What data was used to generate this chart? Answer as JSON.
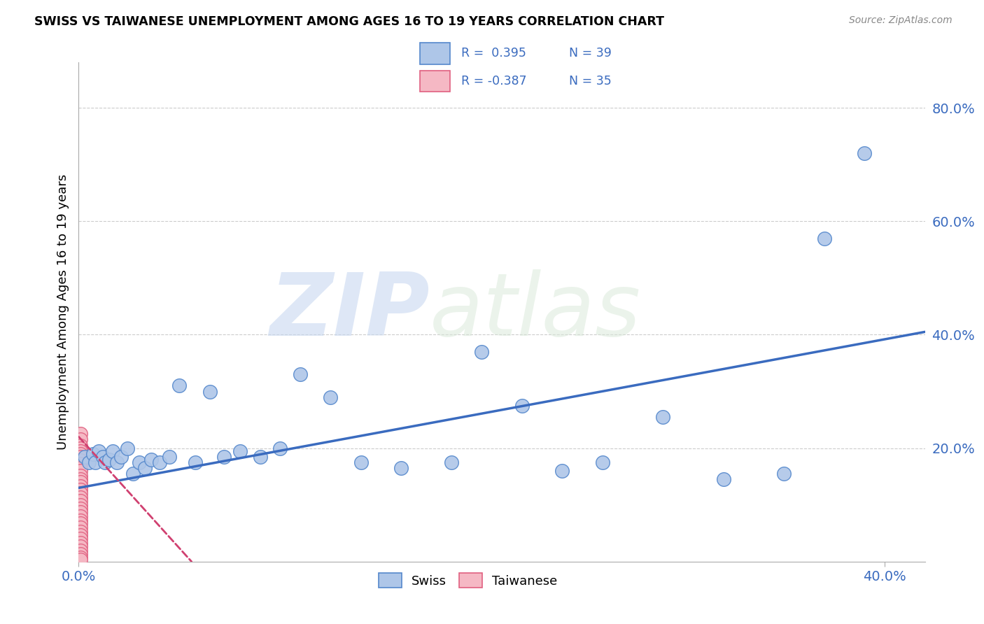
{
  "title": "SWISS VS TAIWANESE UNEMPLOYMENT AMONG AGES 16 TO 19 YEARS CORRELATION CHART",
  "source": "Source: ZipAtlas.com",
  "ylabel": "Unemployment Among Ages 16 to 19 years",
  "xlim": [
    0.0,
    0.42
  ],
  "ylim": [
    0.0,
    0.88
  ],
  "xticks": [
    0.0,
    0.4
  ],
  "yticks": [
    0.2,
    0.4,
    0.6,
    0.8
  ],
  "ytick_labels": [
    "20.0%",
    "40.0%",
    "60.0%",
    "80.0%"
  ],
  "xtick_labels": [
    "0.0%",
    "40.0%"
  ],
  "grid_color": "#cccccc",
  "background_color": "#ffffff",
  "watermark_zip": "ZIP",
  "watermark_atlas": "atlas",
  "swiss_color": "#aec6e8",
  "taiwanese_color": "#f5b8c4",
  "swiss_edge_color": "#5588cc",
  "taiwanese_edge_color": "#e06080",
  "trend_swiss_color": "#3a6bbf",
  "trend_taiwanese_color": "#d04070",
  "legend_r_swiss": "R =  0.395",
  "legend_n_swiss": "N = 39",
  "legend_r_taiwanese": "R = -0.387",
  "legend_n_taiwanese": "N = 35",
  "swiss_x": [
    0.003,
    0.005,
    0.007,
    0.008,
    0.01,
    0.012,
    0.013,
    0.015,
    0.017,
    0.019,
    0.021,
    0.024,
    0.027,
    0.03,
    0.033,
    0.036,
    0.04,
    0.045,
    0.05,
    0.058,
    0.065,
    0.072,
    0.08,
    0.09,
    0.1,
    0.11,
    0.125,
    0.14,
    0.16,
    0.185,
    0.2,
    0.22,
    0.24,
    0.26,
    0.29,
    0.32,
    0.35,
    0.37,
    0.39
  ],
  "swiss_y": [
    0.185,
    0.175,
    0.19,
    0.175,
    0.195,
    0.185,
    0.175,
    0.18,
    0.195,
    0.175,
    0.185,
    0.2,
    0.155,
    0.175,
    0.165,
    0.18,
    0.175,
    0.185,
    0.31,
    0.175,
    0.3,
    0.185,
    0.195,
    0.185,
    0.2,
    0.33,
    0.29,
    0.175,
    0.165,
    0.175,
    0.37,
    0.275,
    0.16,
    0.175,
    0.255,
    0.145,
    0.155,
    0.57,
    0.72
  ],
  "taiwanese_x": [
    0.001,
    0.001,
    0.001,
    0.001,
    0.001,
    0.001,
    0.001,
    0.001,
    0.001,
    0.001,
    0.001,
    0.001,
    0.001,
    0.001,
    0.001,
    0.001,
    0.001,
    0.001,
    0.001,
    0.001,
    0.001,
    0.001,
    0.001,
    0.001,
    0.001,
    0.001,
    0.001,
    0.001,
    0.001,
    0.001,
    0.001,
    0.001,
    0.001,
    0.001,
    0.001
  ],
  "taiwanese_y": [
    0.225,
    0.215,
    0.205,
    0.2,
    0.195,
    0.19,
    0.185,
    0.178,
    0.172,
    0.165,
    0.16,
    0.152,
    0.145,
    0.14,
    0.133,
    0.127,
    0.12,
    0.113,
    0.107,
    0.1,
    0.093,
    0.087,
    0.08,
    0.073,
    0.067,
    0.06,
    0.053,
    0.047,
    0.04,
    0.033,
    0.027,
    0.02,
    0.013,
    0.007,
    0.003
  ],
  "swiss_trend_x": [
    0.0,
    0.42
  ],
  "swiss_trend_y": [
    0.13,
    0.405
  ],
  "taiwanese_trend_x": [
    0.0,
    0.056
  ],
  "taiwanese_trend_y": [
    0.22,
    0.0
  ]
}
